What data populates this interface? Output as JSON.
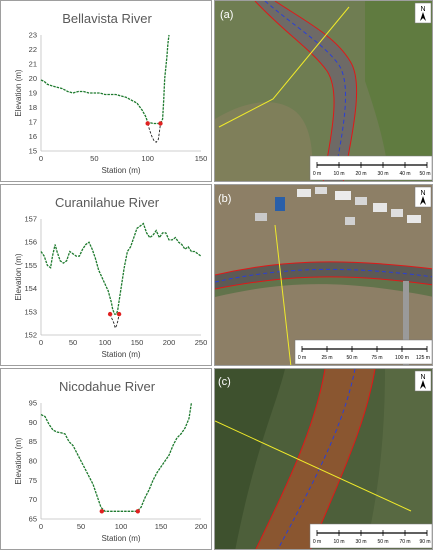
{
  "chart_data": [
    {
      "type": "line",
      "title": "Bellavista River",
      "xlabel": "Station (m)",
      "ylabel": "Elevation (m)",
      "xlim": [
        0,
        150
      ],
      "ylim": [
        15,
        23
      ],
      "xticks": [
        "0",
        "50",
        "100",
        "150"
      ],
      "yticks": [
        "15",
        "16",
        "17",
        "18",
        "19",
        "20",
        "21",
        "22",
        "23"
      ],
      "grid": false,
      "series": [
        {
          "style": "green-dashed",
          "color": "#1e7a2e",
          "x": [
            0,
            3,
            6,
            10,
            15,
            20,
            25,
            30,
            35,
            40,
            45,
            50,
            55,
            60,
            65,
            70,
            75,
            80,
            85,
            90,
            95,
            98,
            100,
            105,
            110,
            112,
            114,
            115,
            116,
            118,
            119,
            120
          ],
          "y": [
            19.9,
            19.8,
            19.6,
            19.5,
            19.4,
            19.3,
            19.1,
            19.0,
            19.1,
            19.1,
            19.0,
            19.0,
            19.0,
            18.9,
            18.9,
            18.9,
            18.8,
            18.7,
            18.5,
            18.3,
            17.8,
            17.4,
            17.0,
            16.9,
            16.9,
            16.9,
            17.2,
            18.5,
            20.0,
            21.5,
            22.4,
            23.0
          ]
        },
        {
          "style": "black-dashed",
          "color": "#222222",
          "x": [
            100,
            102,
            104,
            106,
            108,
            110,
            111,
            112
          ],
          "y": [
            16.9,
            16.4,
            16.0,
            15.7,
            15.6,
            15.8,
            16.3,
            16.9
          ]
        }
      ],
      "markers": {
        "color": "#e02020",
        "x": [
          100,
          112
        ],
        "y": [
          16.9,
          16.9
        ]
      }
    },
    {
      "type": "line",
      "title": "Curanilahue River",
      "xlabel": "Station (m)",
      "ylabel": "Elevation (m)",
      "xlim": [
        0,
        250
      ],
      "ylim": [
        152,
        157
      ],
      "xticks": [
        "0",
        "50",
        "100",
        "150",
        "200",
        "250"
      ],
      "yticks": [
        "152",
        "153",
        "154",
        "155",
        "156",
        "157"
      ],
      "grid": false,
      "series": [
        {
          "style": "green-dashed",
          "color": "#1e7a2e",
          "x": [
            0,
            5,
            10,
            15,
            18,
            22,
            25,
            30,
            35,
            40,
            45,
            50,
            55,
            60,
            65,
            70,
            75,
            80,
            85,
            90,
            95,
            100,
            105,
            108,
            110,
            112,
            115,
            118,
            120,
            125,
            130,
            135,
            140,
            145,
            150,
            155,
            160,
            165,
            170,
            175,
            180,
            185,
            190,
            195,
            200,
            205,
            210,
            215,
            220,
            225,
            230,
            235,
            240,
            245,
            250
          ],
          "y": [
            155.6,
            155.4,
            155.0,
            154.9,
            155.4,
            155.9,
            155.6,
            155.2,
            155.1,
            155.2,
            155.6,
            155.5,
            155.4,
            155.4,
            155.7,
            155.9,
            156.0,
            155.7,
            155.3,
            154.8,
            154.5,
            154.2,
            153.9,
            153.6,
            153.4,
            153.1,
            152.9,
            152.9,
            153.1,
            154.0,
            154.9,
            155.6,
            155.8,
            156.2,
            156.6,
            156.7,
            156.8,
            156.4,
            156.2,
            156.3,
            156.5,
            156.2,
            156.4,
            156.4,
            156.1,
            156.1,
            156.2,
            156.0,
            155.9,
            155.7,
            155.8,
            155.6,
            155.6,
            155.5,
            155.4
          ]
        },
        {
          "style": "black-dashed",
          "color": "#222222",
          "x": [
            108,
            111,
            114,
            116,
            118,
            120,
            122
          ],
          "y": [
            152.9,
            152.7,
            152.5,
            152.3,
            152.4,
            152.6,
            152.9
          ]
        }
      ],
      "markers": {
        "color": "#e02020",
        "x": [
          108,
          122
        ],
        "y": [
          152.9,
          152.9
        ]
      }
    },
    {
      "type": "line",
      "title": "Nicodahue River",
      "xlabel": "Station (m)",
      "ylabel": "Elevation (m)",
      "xlim": [
        0,
        200
      ],
      "ylim": [
        65,
        95
      ],
      "xticks": [
        "0",
        "50",
        "100",
        "150",
        "200"
      ],
      "yticks": [
        "65",
        "70",
        "75",
        "80",
        "85",
        "90",
        "95"
      ],
      "grid": false,
      "series": [
        {
          "style": "green-dashed",
          "color": "#1e7a2e",
          "x": [
            0,
            5,
            10,
            15,
            20,
            25,
            30,
            35,
            40,
            45,
            50,
            55,
            60,
            65,
            70,
            75,
            80,
            90,
            100,
            110,
            115,
            120,
            125,
            130,
            135,
            140,
            145,
            150,
            155,
            160,
            165,
            170,
            175,
            180,
            185,
            188
          ],
          "y": [
            92,
            91.5,
            89.5,
            88,
            87.5,
            87.3,
            87,
            85,
            84,
            82,
            80,
            78,
            76,
            74,
            71,
            68,
            67,
            67,
            67,
            67,
            67,
            67,
            68,
            70.5,
            72.5,
            75,
            77,
            78.5,
            80,
            81.5,
            84,
            86,
            87,
            88.5,
            91,
            95
          ]
        }
      ],
      "markers": {
        "color": "#e02020",
        "x": [
          76,
          121
        ],
        "y": [
          67,
          67
        ]
      }
    }
  ],
  "maps": [
    {
      "label": "(a)",
      "north": "N",
      "scalebar": [
        "0 m",
        "10 m",
        "20 m",
        "30 m",
        "40 m",
        "50 m"
      ],
      "colors": {
        "ground": "#6f7d52",
        "water": "#6e6a66",
        "bank_line": "#e01818",
        "centerline": "#2a3fd6",
        "section_line": "#f0ea2a"
      }
    },
    {
      "label": "(b)",
      "north": "N",
      "scalebar": [
        "0 m",
        "25 m",
        "50 m",
        "75 m",
        "100 m",
        "125 m"
      ],
      "colors": {
        "ground": "#8d7f66",
        "water": "#5d5a55",
        "bank_line": "#e01818",
        "centerline": "#2a3fd6",
        "section_line": "#f0ea2a"
      }
    },
    {
      "label": "(c)",
      "north": "N",
      "scalebar": [
        "0 m",
        "10 m",
        "30 m",
        "50 m",
        "70 m",
        "90 m"
      ],
      "colors": {
        "ground": "#4d5f3a",
        "water": "#8a5630",
        "bank_line": "#e01818",
        "centerline": "#2a3fd6",
        "section_line": "#f0ea2a"
      }
    }
  ]
}
